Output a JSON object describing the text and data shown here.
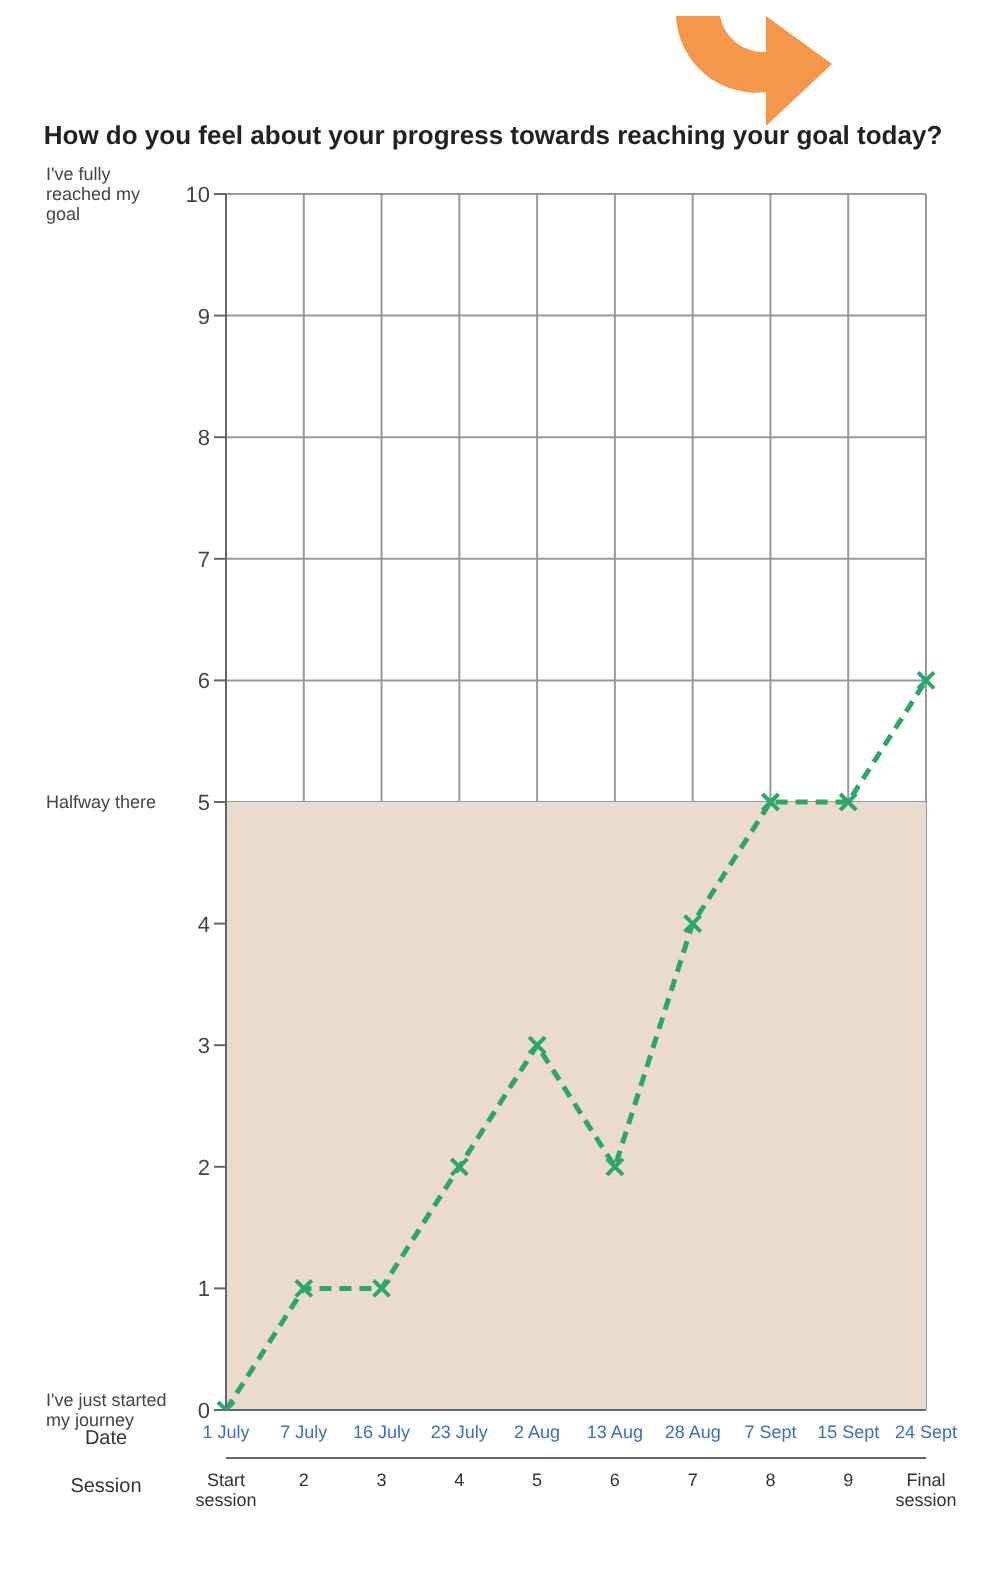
{
  "chart_data": {
    "type": "line",
    "title": "How do you feel about your progress towards reaching your goal today?",
    "xlabel": "Session",
    "categories": [
      "Start session",
      "2",
      "3",
      "4",
      "5",
      "6",
      "7",
      "8",
      "9",
      "Final session"
    ],
    "series": [
      {
        "color": "#2aa86a",
        "values": [
          0,
          1,
          1,
          2,
          3,
          2,
          4,
          5,
          5,
          6
        ]
      }
    ],
    "ylim": [
      0,
      10
    ],
    "yticks": [
      0,
      1,
      2,
      3,
      4,
      5,
      6,
      7,
      8,
      9,
      10
    ],
    "grid": true,
    "marker": "cross",
    "line_style": "dashed",
    "bands": [
      {
        "axis": "y",
        "from": 0,
        "to": 5,
        "color": "#eadbcd"
      }
    ],
    "annotations": [
      "Date",
      "I've just started my journey",
      "Halfway there",
      "I've fully reached my goal",
      "1 July",
      "7 July",
      "16 July",
      "23 July",
      "2 Aug",
      "13 Aug",
      "28 Aug",
      "7 Sept",
      "15 Sept",
      "24 Sept"
    ]
  }
}
